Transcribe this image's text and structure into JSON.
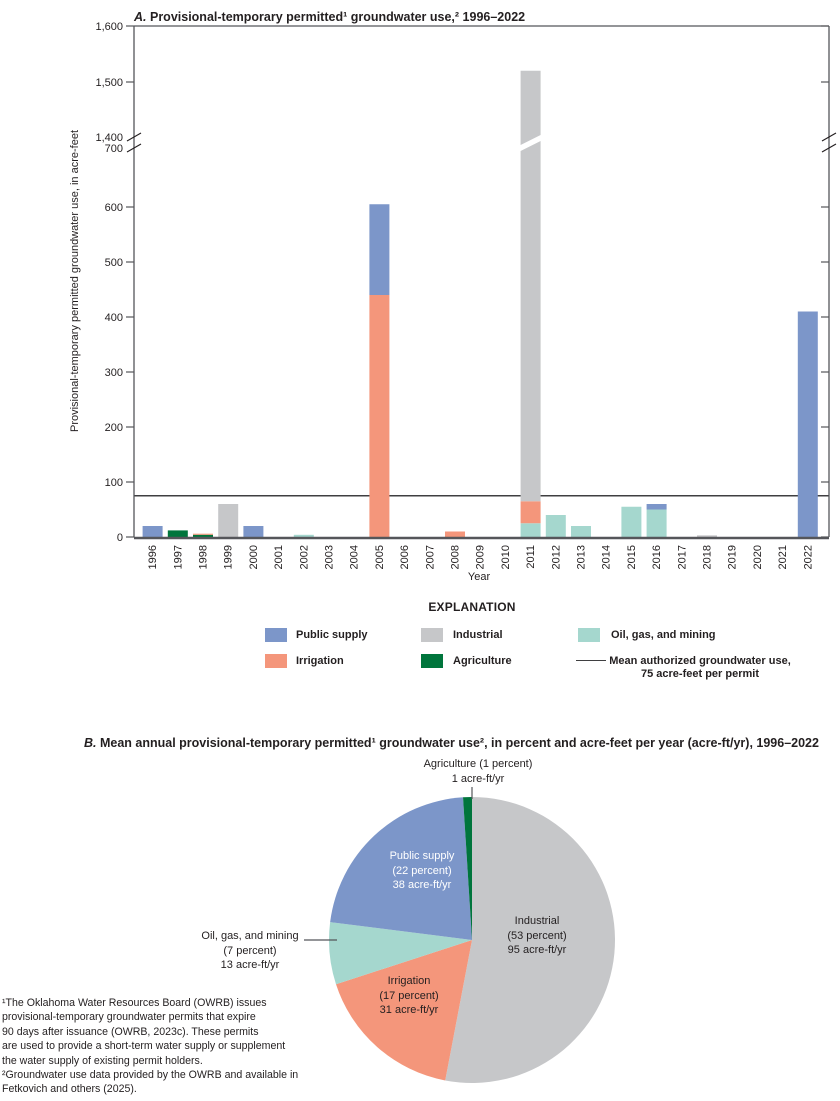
{
  "figure_a": {
    "title_prefix": "A.",
    "title": "Provisional-temporary permitted¹ groundwater use,² 1996–2022",
    "ylabel": "Provisional-temporary permitted groundwater use, in acre-feet",
    "xlabel": "Year"
  },
  "explanation": {
    "heading": "EXPLANATION",
    "items": [
      {
        "label": "Public supply",
        "color": "#7C96C9",
        "type": "swatch",
        "col": 0,
        "row": 0
      },
      {
        "label": "Irrigation",
        "color": "#F4967B",
        "type": "swatch",
        "col": 0,
        "row": 1
      },
      {
        "label": "Industrial",
        "color": "#C6C7C9",
        "type": "swatch",
        "col": 1,
        "row": 0
      },
      {
        "label": "Agriculture",
        "color": "#00753C",
        "type": "swatch",
        "col": 1,
        "row": 1
      },
      {
        "label": "Oil, gas, and mining",
        "color": "#A5D7CE",
        "type": "swatch",
        "col": 2,
        "row": 0
      },
      {
        "label": "Mean authorized groundwater use,\n75 acre-feet per permit",
        "type": "line",
        "col": 2,
        "row": 1
      }
    ]
  },
  "figure_b": {
    "title_prefix": "B.",
    "title": "Mean annual provisional-temporary permitted¹ groundwater use², in percent and acre-feet per year (acre-ft/yr), 1996–2022"
  },
  "footnotes": "¹The Oklahoma Water Resources Board (OWRB) issues\nprovisional-temporary groundwater permits that expire\n90 days after issuance (OWRB, 2023c). These permits\nare used to provide a short-term water supply or supplement\nthe water supply of existing permit holders.\n²Groundwater use data provided by the OWRB and available in\nFetkovich and others (2025).",
  "chart_data": [
    {
      "type": "bar",
      "stacked": true,
      "title": "A. Provisional-temporary permitted groundwater use, 1996–2022",
      "xlabel": "Year",
      "ylabel": "Provisional-temporary permitted groundwater use, in acre-feet",
      "axis_break": true,
      "ylim_lower": [
        0,
        700
      ],
      "ylim_upper": [
        1400,
        1600
      ],
      "yticks_lower": [
        0,
        100,
        200,
        300,
        400,
        500,
        600,
        700
      ],
      "yticks_upper": [
        1400,
        1500,
        1600
      ],
      "categories": [
        "1996",
        "1997",
        "1998",
        "1999",
        "2000",
        "2001",
        "2002",
        "2003",
        "2004",
        "2005",
        "2006",
        "2007",
        "2008",
        "2009",
        "2010",
        "2011",
        "2012",
        "2013",
        "2014",
        "2015",
        "2016",
        "2017",
        "2018",
        "2019",
        "2020",
        "2021",
        "2022"
      ],
      "series": [
        {
          "name": "Agriculture",
          "color": "#00753C",
          "values": [
            0,
            12,
            4,
            0,
            0,
            0,
            0,
            0,
            0,
            0,
            0,
            0,
            0,
            0,
            0,
            0,
            0,
            0,
            0,
            0,
            0,
            0,
            0,
            0,
            0,
            0,
            0
          ]
        },
        {
          "name": "Oil, gas, and mining",
          "color": "#A5D7CE",
          "values": [
            0,
            0,
            0,
            0,
            0,
            0,
            4,
            0,
            0,
            0,
            0,
            0,
            0,
            0,
            0,
            25,
            40,
            20,
            0,
            55,
            50,
            0,
            0,
            0,
            0,
            0,
            0
          ]
        },
        {
          "name": "Irrigation",
          "color": "#F4967B",
          "values": [
            0,
            0,
            2,
            0,
            0,
            0,
            0,
            0,
            0,
            440,
            0,
            0,
            10,
            0,
            0,
            40,
            0,
            0,
            0,
            0,
            0,
            0,
            0,
            0,
            0,
            0,
            0
          ]
        },
        {
          "name": "Industrial",
          "color": "#C6C7C9",
          "values": [
            0,
            0,
            0,
            60,
            0,
            0,
            0,
            0,
            0,
            0,
            0,
            0,
            0,
            0,
            0,
            1455,
            0,
            0,
            0,
            0,
            0,
            0,
            3,
            0,
            0,
            0,
            0
          ]
        },
        {
          "name": "Public supply",
          "color": "#7C96C9",
          "values": [
            20,
            0,
            0,
            0,
            20,
            0,
            0,
            0,
            0,
            165,
            0,
            0,
            0,
            0,
            0,
            0,
            0,
            0,
            0,
            0,
            10,
            0,
            0,
            0,
            0,
            0,
            410
          ]
        }
      ],
      "mean_line": {
        "value": 75,
        "label": "Mean authorized groundwater use, 75 acre-feet per permit"
      }
    },
    {
      "type": "pie",
      "title": "B. Mean annual provisional-temporary permitted groundwater use, in percent and acre-feet per year (acre-ft/yr), 1996–2022",
      "order": "clockwise from 12 o'clock",
      "slices": [
        {
          "name": "Industrial",
          "percent": 53,
          "acre_ft_per_yr": 95,
          "color": "#C6C7C9",
          "label": "Industrial\n(53 percent)\n95 acre-ft/yr",
          "label_pos": "inside"
        },
        {
          "name": "Irrigation",
          "percent": 17,
          "acre_ft_per_yr": 31,
          "color": "#F4967B",
          "label": "Irrigation\n(17 percent)\n31 acre-ft/yr",
          "label_pos": "inside"
        },
        {
          "name": "Oil, gas, and mining",
          "percent": 7,
          "acre_ft_per_yr": 13,
          "color": "#A5D7CE",
          "label": "Oil, gas, and mining\n(7 percent)\n13 acre-ft/yr",
          "label_pos": "outside-left"
        },
        {
          "name": "Public supply",
          "percent": 22,
          "acre_ft_per_yr": 38,
          "color": "#7C96C9",
          "label": "Public supply\n(22 percent)\n38 acre-ft/yr",
          "label_pos": "inside-white"
        },
        {
          "name": "Agriculture",
          "percent": 1,
          "acre_ft_per_yr": 1,
          "color": "#00753C",
          "label": "Agriculture (1 percent)\n1 acre-ft/yr",
          "label_pos": "outside-top"
        }
      ]
    }
  ]
}
